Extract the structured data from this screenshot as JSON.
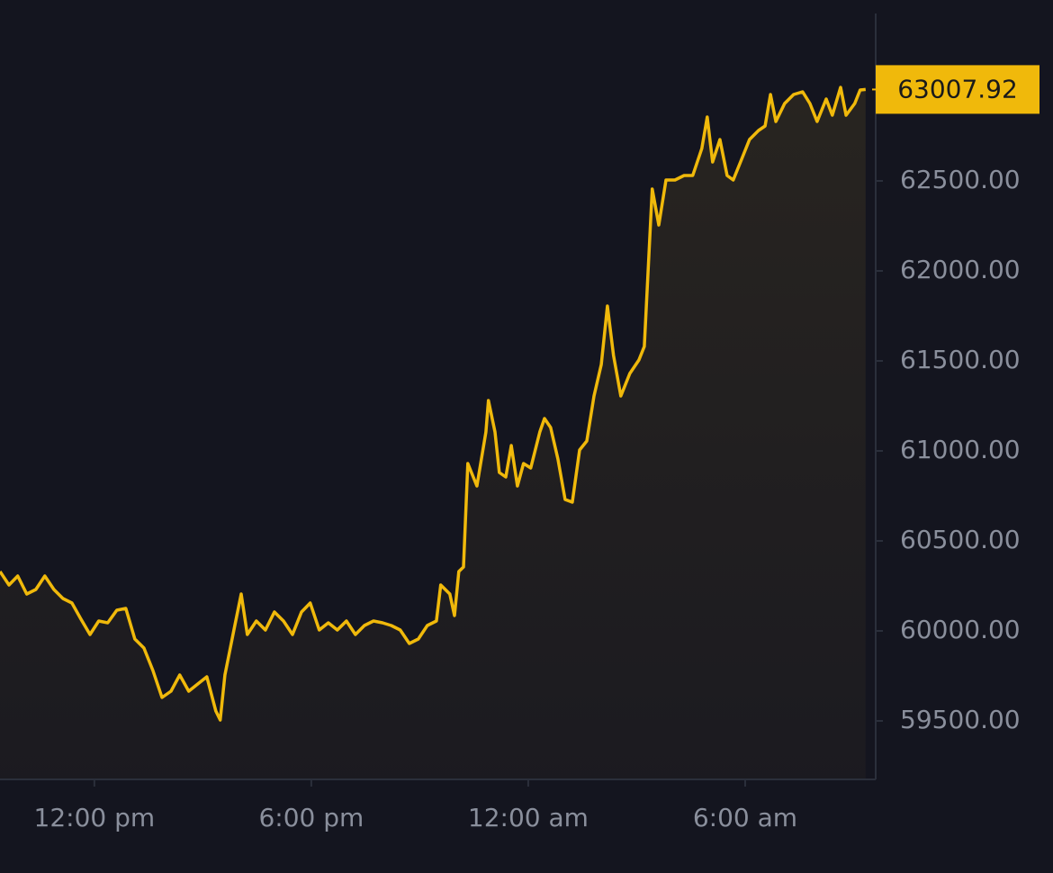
{
  "chart_data": {
    "type": "line",
    "x": [
      9.39,
      9.64,
      9.88,
      10.13,
      10.38,
      10.63,
      10.88,
      11.13,
      11.38,
      11.63,
      11.88,
      12.12,
      12.37,
      12.62,
      12.87,
      13.12,
      13.37,
      13.62,
      13.87,
      14.12,
      14.36,
      14.61,
      14.86,
      15.11,
      15.36,
      15.48,
      15.61,
      15.86,
      16.06,
      16.23,
      16.48,
      16.73,
      16.98,
      17.23,
      17.48,
      17.73,
      17.97,
      18.22,
      18.47,
      18.72,
      18.97,
      19.22,
      19.47,
      19.72,
      19.97,
      20.21,
      20.46,
      20.71,
      20.96,
      21.21,
      21.46,
      21.58,
      21.83,
      21.96,
      22.08,
      22.21,
      22.33,
      22.58,
      22.83,
      22.9,
      23.08,
      23.2,
      23.38,
      23.53,
      23.7,
      23.87,
      24.07,
      24.32,
      24.45,
      24.62,
      24.82,
      25.02,
      25.22,
      25.42,
      25.62,
      25.82,
      26.02,
      26.19,
      26.36,
      26.56,
      26.81,
      27.06,
      27.21,
      27.43,
      27.61,
      27.81,
      28.06,
      28.31,
      28.55,
      28.8,
      28.95,
      29.1,
      29.3,
      29.5,
      29.67,
      29.92,
      30.12,
      30.37,
      30.55,
      30.7,
      30.85,
      31.09,
      31.34,
      31.59,
      31.79,
      31.99,
      32.24,
      32.41,
      32.64,
      32.79,
      33.03,
      33.18,
      33.33
    ],
    "values": [
      60330,
      60255,
      60305,
      60205,
      60230,
      60305,
      60230,
      60180,
      60155,
      60065,
      59980,
      60055,
      60045,
      60115,
      60125,
      59955,
      59905,
      59780,
      59630,
      59665,
      59755,
      59665,
      59705,
      59745,
      59555,
      59505,
      59755,
      60005,
      60205,
      59980,
      60055,
      60005,
      60105,
      60055,
      59980,
      60105,
      60155,
      60005,
      60045,
      60005,
      60055,
      59980,
      60030,
      60055,
      60045,
      60030,
      60005,
      59930,
      59955,
      60030,
      60055,
      60255,
      60205,
      60085,
      60330,
      60355,
      60930,
      60805,
      61105,
      61280,
      61105,
      60880,
      60855,
      61030,
      60805,
      60930,
      60905,
      61105,
      61180,
      61130,
      60955,
      60730,
      60715,
      61005,
      61055,
      61305,
      61480,
      61805,
      61530,
      61305,
      61430,
      61505,
      61580,
      62455,
      62255,
      62505,
      62505,
      62530,
      62530,
      62680,
      62855,
      62605,
      62730,
      62530,
      62505,
      62630,
      62730,
      62780,
      62805,
      62980,
      62830,
      62930,
      62980,
      62995,
      62930,
      62830,
      62955,
      62865,
      63020,
      62865,
      62930,
      63005,
      63007.92
    ],
    "color": "#f0b90b",
    "xlim": [
      9.39,
      33.61
    ],
    "xticks": [
      {
        "value": 12,
        "label": "12:00 pm"
      },
      {
        "value": 18,
        "label": "6:00 pm"
      },
      {
        "value": 24,
        "label": "12:00 am"
      },
      {
        "value": 30,
        "label": "6:00 am"
      }
    ],
    "ylim": [
      59175,
      63430
    ],
    "yticks": [
      {
        "value": 59500,
        "label": "59500.00"
      },
      {
        "value": 60000,
        "label": "60000.00"
      },
      {
        "value": 60500,
        "label": "60500.00"
      },
      {
        "value": 61000,
        "label": "61000.00"
      },
      {
        "value": 61500,
        "label": "61500.00"
      },
      {
        "value": 62000,
        "label": "62000.00"
      },
      {
        "value": 62500,
        "label": "62500.00"
      }
    ],
    "grid": false
  }
}
